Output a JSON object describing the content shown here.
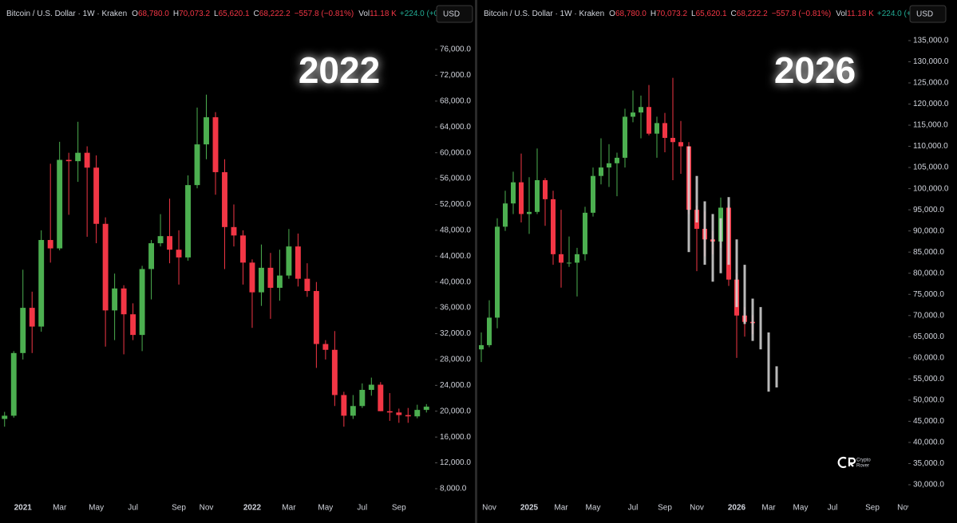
{
  "chart_data": [
    {
      "type": "candlestick",
      "header": {
        "symbol": "Bitcoin / U.S. Dollar · 1W · Kraken",
        "open_label": "O",
        "open": "68,780.0",
        "high_label": "H",
        "high": "70,073.2",
        "low_label": "L",
        "low": "65,620.1",
        "close_label": "C",
        "close": "68,222.2",
        "change": "−557.8 (−0.81%)",
        "volume_label": "Vol",
        "volume": "11.18 K",
        "volume_change": "+224.0 (+0.33%)"
      },
      "currency": "USD",
      "annotation": "2022",
      "up_color": "#4caf50",
      "down_color": "#f23645",
      "categories": [
        null,
        null,
        "2021",
        null,
        null,
        null,
        "Mar",
        null,
        null,
        null,
        "May",
        null,
        null,
        null,
        "Jul",
        null,
        null,
        null,
        null,
        "Sep",
        null,
        null,
        "Nov",
        null,
        null,
        null,
        null,
        "2022",
        null,
        null,
        null,
        "Mar",
        null,
        null,
        null,
        "May",
        null,
        null,
        null,
        "Jul",
        null,
        null,
        null,
        "Sep",
        null,
        null,
        null
      ],
      "open": [
        18800,
        19300,
        29000,
        36000,
        33100,
        46500,
        45200,
        58900,
        58700,
        60000,
        57700,
        49000,
        35600,
        39000,
        35000,
        31800,
        42000,
        46000,
        47100,
        45000,
        43800,
        55000,
        61300,
        65500,
        57000,
        48500,
        47200,
        43000,
        38400,
        42200,
        39100,
        41000,
        45500,
        40500,
        38600,
        30400,
        29500,
        22500,
        19300,
        20800,
        23300,
        24100,
        20000,
        19800,
        19400,
        19200,
        20200
      ],
      "high": [
        19900,
        29300,
        41900,
        38500,
        48000,
        58300,
        61700,
        60000,
        64800,
        61000,
        59600,
        50000,
        41300,
        39500,
        36700,
        42500,
        46500,
        50500,
        52900,
        48000,
        56500,
        67000,
        69000,
        66300,
        59000,
        52000,
        48000,
        43500,
        45800,
        44500,
        45000,
        48200,
        47500,
        42900,
        40000,
        31000,
        32400,
        23000,
        22500,
        24300,
        25200,
        24500,
        22800,
        20400,
        20500,
        21000,
        21100
      ],
      "low": [
        17600,
        19000,
        28000,
        29000,
        32300,
        43000,
        44900,
        50400,
        55500,
        47000,
        46000,
        30000,
        31000,
        28800,
        31000,
        29300,
        37300,
        45500,
        42900,
        39600,
        43300,
        54500,
        59000,
        53500,
        42000,
        45500,
        39600,
        32900,
        36300,
        34300,
        37100,
        40500,
        39300,
        37700,
        26700,
        28000,
        20800,
        17600,
        18800,
        20500,
        22400,
        20000,
        18500,
        18200,
        18200,
        18900,
        19800
      ],
      "close": [
        19300,
        29000,
        36000,
        33100,
        46500,
        45200,
        58900,
        58700,
        60000,
        57700,
        49000,
        35600,
        39000,
        35000,
        31800,
        42000,
        46000,
        47100,
        45000,
        43800,
        55000,
        61300,
        65500,
        57000,
        48500,
        47200,
        43000,
        38400,
        42200,
        39100,
        41000,
        45500,
        40500,
        38600,
        30400,
        29500,
        22500,
        19300,
        20800,
        23300,
        24100,
        20000,
        19800,
        19400,
        19200,
        20200,
        20700
      ],
      "ylim": [
        5900,
        83650
      ],
      "yticks": [
        {
          "value": 8000,
          "label": "8,000.0"
        },
        {
          "value": 12000,
          "label": "12,000.0"
        },
        {
          "value": 16000,
          "label": "16,000.0"
        },
        {
          "value": 20000,
          "label": "20,000.0"
        },
        {
          "value": 24000,
          "label": "24,000.0"
        },
        {
          "value": 28000,
          "label": "28,000.0"
        },
        {
          "value": 32000,
          "label": "32,000.0"
        },
        {
          "value": 36000,
          "label": "36,000.0"
        },
        {
          "value": 40000,
          "label": "40,000.0"
        },
        {
          "value": 44000,
          "label": "44,000.0"
        },
        {
          "value": 48000,
          "label": "48,000.0"
        },
        {
          "value": 52000,
          "label": "52,000.0"
        },
        {
          "value": 56000,
          "label": "56,000.0"
        },
        {
          "value": 60000,
          "label": "60,000.0"
        },
        {
          "value": 64000,
          "label": "64,000.0"
        },
        {
          "value": 68000,
          "label": "68,000.0"
        },
        {
          "value": 72000,
          "label": "72,000.0"
        },
        {
          "value": 76000,
          "label": "76,000.0"
        }
      ]
    },
    {
      "type": "candlestick",
      "header": {
        "symbol": "Bitcoin / U.S. Dollar · 1W · Kraken",
        "open_label": "O",
        "open": "68,780.0",
        "high_label": "H",
        "high": "70,073.2",
        "low_label": "L",
        "low": "65,620.1",
        "close_label": "C",
        "close": "68,222.2",
        "change": "−557.8 (−0.81%)",
        "volume_label": "Vol",
        "volume": "11.18 K",
        "volume_change": "+224.0 (+0.33%)"
      },
      "currency": "USD",
      "annotation": "2026",
      "up_color": "#4caf50",
      "down_color": "#f23645",
      "watermark": [
        "Crypto",
        "Rover"
      ],
      "categories": [
        null,
        "Nov",
        null,
        null,
        null,
        null,
        "2025",
        null,
        null,
        null,
        "Mar",
        null,
        null,
        null,
        "May",
        null,
        null,
        null,
        null,
        "Jul",
        null,
        null,
        null,
        "Sep",
        null,
        null,
        null,
        "Nov",
        null,
        null,
        null,
        null,
        "2026",
        null,
        null,
        null,
        "Mar",
        null,
        null,
        null,
        "May",
        null,
        null,
        null,
        "Jul",
        null,
        null,
        null,
        null,
        "Sep",
        null,
        null,
        null,
        "Nov"
      ],
      "open": [
        62000,
        63000,
        69500,
        91000,
        96500,
        101500,
        94000,
        94500,
        102000,
        97500,
        84500,
        82500,
        82500,
        84500,
        94300,
        103000,
        105000,
        106000,
        107300,
        117000,
        118000,
        119300,
        113000,
        115500,
        112000,
        111000,
        110000,
        95000,
        90500,
        88000,
        87500,
        95500,
        78500,
        70000,
        68500,
        null,
        null,
        null,
        null,
        null,
        null,
        null,
        null,
        null,
        null,
        null,
        null,
        null,
        null,
        null,
        null,
        null,
        null,
        null
      ],
      "high": [
        66000,
        73600,
        93000,
        99500,
        104000,
        108300,
        102700,
        109500,
        102500,
        99500,
        95000,
        88700,
        86000,
        95700,
        105000,
        111900,
        110500,
        108500,
        118900,
        123200,
        122000,
        124500,
        117000,
        117900,
        126200,
        116000,
        111000,
        96000,
        94600,
        90000,
        97900,
        96000,
        80000,
        72000,
        70100,
        null,
        null,
        null,
        null,
        null,
        null,
        null,
        null,
        null,
        null,
        null,
        null,
        null,
        null,
        null,
        null,
        null,
        null,
        null
      ],
      "low": [
        59000,
        62500,
        67000,
        90000,
        94000,
        92000,
        89300,
        94000,
        91200,
        82000,
        76600,
        81500,
        74500,
        83000,
        93400,
        101000,
        100400,
        98200,
        105000,
        115700,
        111900,
        112600,
        107300,
        108600,
        102000,
        103500,
        94000,
        80500,
        84000,
        84500,
        86000,
        77000,
        60000,
        65000,
        65600,
        null,
        null,
        null,
        null,
        null,
        null,
        null,
        null,
        null,
        null,
        null,
        null,
        null,
        null,
        null,
        null,
        null,
        null,
        null
      ],
      "close": [
        63000,
        69500,
        91000,
        96500,
        101500,
        94000,
        94500,
        102000,
        97500,
        84500,
        82500,
        82500,
        84500,
        94300,
        103000,
        105000,
        106000,
        107300,
        117000,
        118000,
        119300,
        113000,
        115500,
        112000,
        111000,
        110000,
        95000,
        90500,
        88000,
        87500,
        95500,
        78500,
        70000,
        68500,
        68200,
        null,
        null,
        null,
        null,
        null,
        null,
        null,
        null,
        null,
        null,
        null,
        null,
        null,
        null,
        null,
        null,
        null,
        null,
        null
      ],
      "overlay": {
        "color": "#d9d9d9",
        "high": [
          null,
          null,
          null,
          null,
          null,
          null,
          null,
          null,
          null,
          null,
          null,
          null,
          null,
          null,
          null,
          null,
          null,
          null,
          null,
          null,
          null,
          null,
          null,
          null,
          null,
          null,
          110000,
          103000,
          97000,
          94000,
          93000,
          98000,
          88000,
          82000,
          74000,
          72000,
          66000,
          58000,
          null,
          null,
          null,
          null,
          null,
          null,
          null,
          null,
          null,
          null,
          null,
          null,
          null,
          null,
          null,
          null
        ],
        "low": [
          null,
          null,
          null,
          null,
          null,
          null,
          null,
          null,
          null,
          null,
          null,
          null,
          null,
          null,
          null,
          null,
          null,
          null,
          null,
          null,
          null,
          null,
          null,
          null,
          null,
          null,
          85000,
          92000,
          82000,
          78000,
          80000,
          82000,
          72000,
          68000,
          64000,
          62000,
          52000,
          53000,
          null,
          null,
          null,
          null,
          null,
          null,
          null,
          null,
          null,
          null,
          null,
          null,
          null,
          null,
          null,
          null
        ]
      },
      "ylim": [
        25850,
        144600
      ],
      "yticks": [
        {
          "value": 30000,
          "label": "30,000.0"
        },
        {
          "value": 35000,
          "label": "35,000.0"
        },
        {
          "value": 40000,
          "label": "40,000.0"
        },
        {
          "value": 45000,
          "label": "45,000.0"
        },
        {
          "value": 50000,
          "label": "50,000.0"
        },
        {
          "value": 55000,
          "label": "55,000.0"
        },
        {
          "value": 60000,
          "label": "60,000.0"
        },
        {
          "value": 65000,
          "label": "65,000.0"
        },
        {
          "value": 70000,
          "label": "70,000.0"
        },
        {
          "value": 75000,
          "label": "75,000.0"
        },
        {
          "value": 80000,
          "label": "80,000.0"
        },
        {
          "value": 85000,
          "label": "85,000.0"
        },
        {
          "value": 90000,
          "label": "90,000.0"
        },
        {
          "value": 95000,
          "label": "95,000.0"
        },
        {
          "value": 100000,
          "label": "100,000.0"
        },
        {
          "value": 105000,
          "label": "105,000.0"
        },
        {
          "value": 110000,
          "label": "110,000.0"
        },
        {
          "value": 115000,
          "label": "115,000.0"
        },
        {
          "value": 120000,
          "label": "120,000.0"
        },
        {
          "value": 125000,
          "label": "125,000.0"
        },
        {
          "value": 130000,
          "label": "130,000.0"
        },
        {
          "value": 135000,
          "label": "135,000.0"
        }
      ]
    }
  ]
}
